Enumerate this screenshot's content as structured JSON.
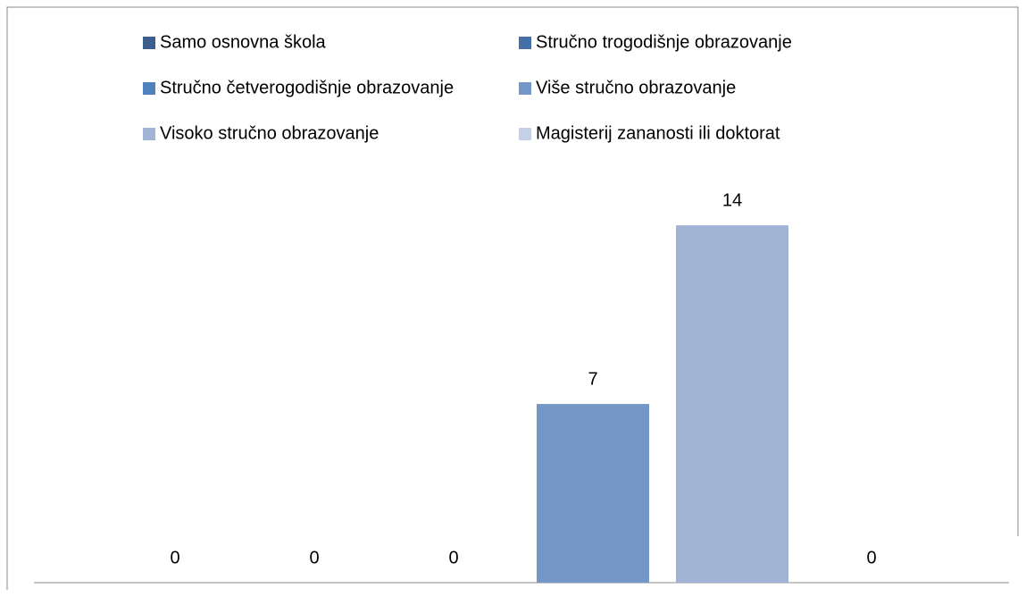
{
  "chart_data": {
    "type": "bar",
    "series": [
      {
        "name": "Samo osnovna škola",
        "color": "#3c5e8e",
        "values": [
          0
        ]
      },
      {
        "name": "Stručno trogodišnje obrazovanje",
        "color": "#4470a6",
        "values": [
          0
        ]
      },
      {
        "name": "Stručno četverogodišnje obrazovanje",
        "color": "#4f81bd",
        "values": [
          0
        ]
      },
      {
        "name": "Više stručno obrazovanje",
        "color": "#7597c8",
        "values": [
          7
        ]
      },
      {
        "name": "Visoko stručno obrazovanje",
        "color": "#a2b4d5",
        "values": [
          14
        ]
      },
      {
        "name": "Magisterij zananosti ili doktorat",
        "color": "#c6d0e6",
        "values": [
          0
        ]
      }
    ],
    "ylim": [
      0,
      16
    ]
  }
}
